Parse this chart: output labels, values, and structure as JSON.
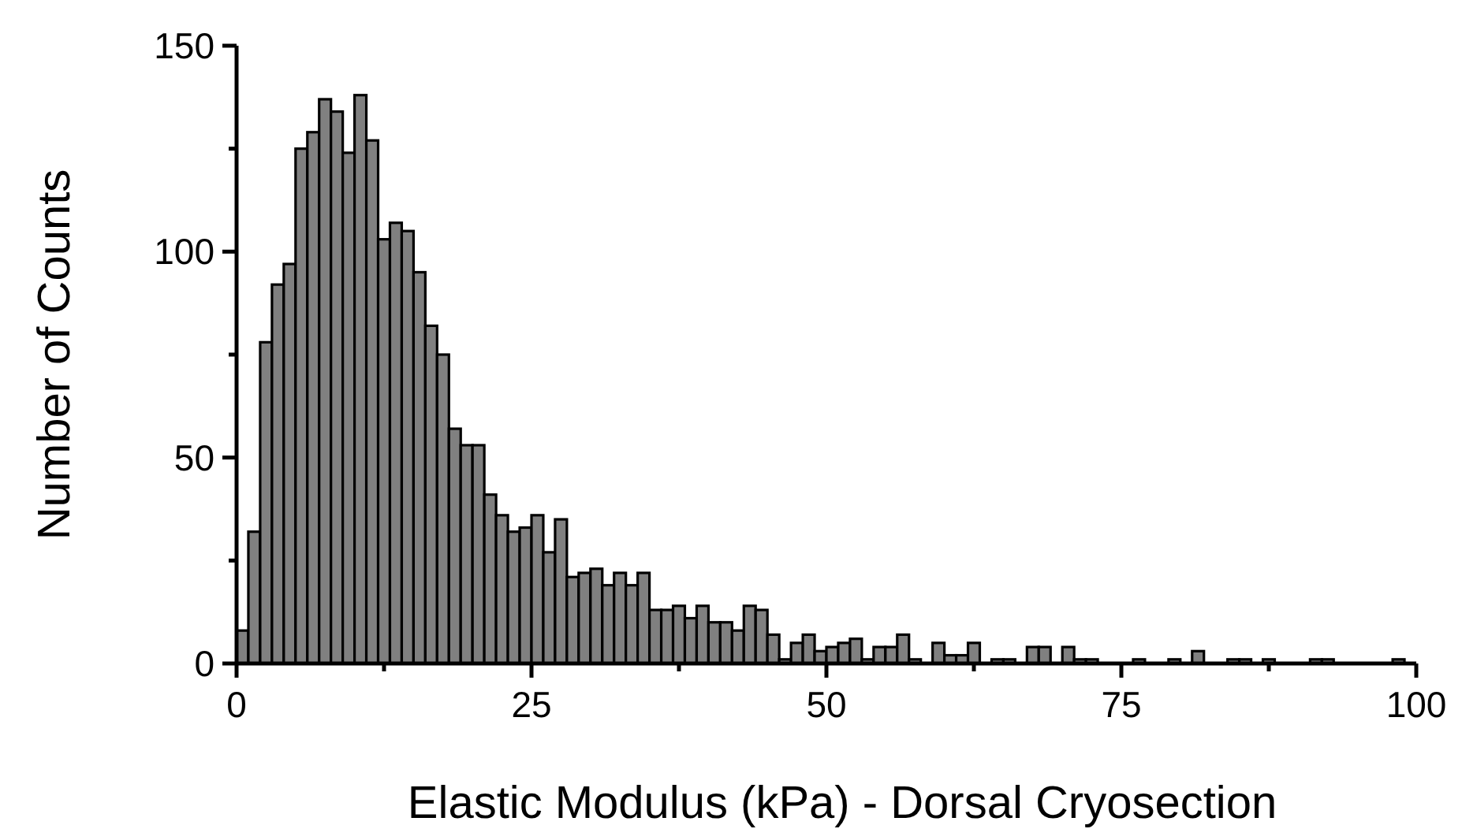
{
  "chart_data": {
    "type": "histogram",
    "xlabel": "Elastic Modulus (kPa) - Dorsal Cryosection",
    "ylabel": "Number of Counts",
    "color": "#808080",
    "bins": [
      0,
      1,
      2,
      3,
      4,
      5,
      6,
      7,
      8,
      9,
      10,
      11,
      12,
      13,
      14,
      15,
      16,
      17,
      18,
      19,
      20,
      21,
      22,
      23,
      24,
      25,
      26,
      27,
      28,
      29,
      30,
      31,
      32,
      33,
      34,
      35,
      36,
      37,
      38,
      39,
      40,
      41,
      42,
      43,
      44,
      45,
      46,
      47,
      48,
      49,
      50,
      51,
      52,
      53,
      54,
      55,
      56,
      57,
      58,
      59,
      60,
      61,
      62,
      63,
      64,
      65,
      66,
      67,
      68,
      69,
      70,
      71,
      72,
      73,
      74,
      75,
      76,
      77,
      78,
      79,
      80,
      81,
      82,
      83,
      84,
      85,
      86,
      87,
      88,
      89,
      90,
      91,
      92,
      93,
      94,
      95,
      96,
      97,
      98,
      99,
      100
    ],
    "values": [
      8,
      32,
      78,
      92,
      97,
      125,
      129,
      137,
      134,
      124,
      138,
      127,
      103,
      107,
      105,
      95,
      82,
      75,
      57,
      53,
      53,
      41,
      36,
      32,
      33,
      36,
      27,
      35,
      21,
      22,
      23,
      19,
      22,
      19,
      22,
      13,
      13,
      14,
      11,
      14,
      10,
      10,
      8,
      14,
      13,
      7,
      1,
      5,
      7,
      3,
      4,
      5,
      6,
      1,
      4,
      4,
      7,
      1,
      0,
      5,
      2,
      2,
      5,
      0,
      1,
      1,
      0,
      4,
      4,
      0,
      4,
      1,
      1,
      0,
      0,
      0,
      1,
      0,
      0,
      1,
      0,
      3,
      0,
      0,
      1,
      1,
      0,
      1,
      0,
      0,
      0,
      1,
      1,
      0,
      0,
      0,
      0,
      0,
      1,
      0
    ],
    "xlim": [
      0,
      100
    ],
    "ylim": [
      0,
      150
    ],
    "xticks": [
      0,
      {
        "value": 12.5,
        "label": null
      },
      25,
      {
        "value": 37.5,
        "label": null
      },
      50,
      {
        "value": 62.5,
        "label": null
      },
      75,
      {
        "value": 87.5,
        "label": null
      },
      100
    ],
    "yticks": [
      0,
      {
        "value": 25,
        "label": null
      },
      50,
      {
        "value": 75,
        "label": null
      },
      100,
      {
        "value": 125,
        "label": null
      },
      150
    ],
    "tick_labels": true
  }
}
